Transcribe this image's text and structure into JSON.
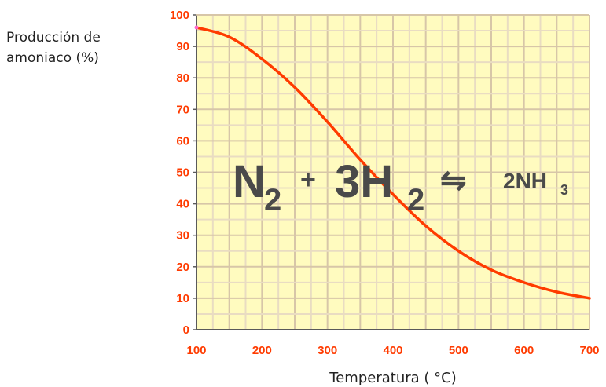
{
  "chart_data": {
    "type": "line",
    "ylabel_lines": [
      "Producción de",
      "amoniaco (%)"
    ],
    "xlabel": "Temperatura ( °C)",
    "xlim": [
      100,
      700
    ],
    "ylim": [
      0,
      100
    ],
    "x_ticks": [
      "100",
      "200",
      "300",
      "400",
      "500",
      "600",
      "700"
    ],
    "y_ticks": [
      "0",
      "10",
      "20",
      "30",
      "40",
      "50",
      "60",
      "70",
      "80",
      "90",
      "100"
    ],
    "grid": true,
    "series": [
      {
        "x": [
          100,
          150,
          200,
          250,
          300,
          350,
          400,
          450,
          500,
          550,
          600,
          650,
          700
        ],
        "y": [
          96,
          93,
          86,
          77,
          66,
          54,
          43,
          33,
          25,
          19,
          15,
          12,
          10
        ]
      }
    ],
    "annotation": {
      "n": "N",
      "n_sub": "2",
      "plus": "+",
      "h_coef": "3H",
      "h_sub": "2",
      "arrow": "⇋",
      "product": "2NH",
      "product_sub": "3"
    },
    "colors": {
      "plot_bg": "#fffbbf",
      "grid_major": "#d7c6a8",
      "grid_minor": "#e9dcc2",
      "curve": "#ff3b00",
      "ticks": "#ff3b00",
      "axis": "#5a5a5a"
    }
  }
}
